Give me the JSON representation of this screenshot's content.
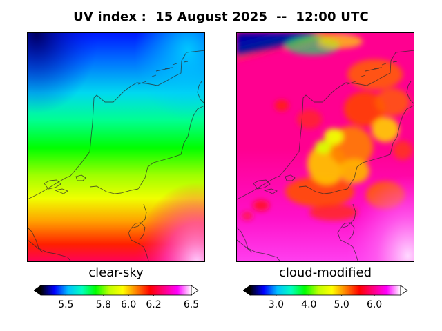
{
  "title": "UV index :  15 August 2025  --  12:00 UTC",
  "panels": [
    {
      "name": "clear-sky",
      "caption": "clear-sky",
      "colorbar": {
        "min": 5.3,
        "max": 6.5,
        "ticks": [
          "5.5",
          "5.8",
          "6.0",
          "6.2",
          "6.5"
        ],
        "tick_values": [
          5.5,
          5.8,
          6.0,
          6.2,
          6.5
        ]
      }
    },
    {
      "name": "cloud-modified",
      "caption": "cloud-modified",
      "colorbar": {
        "min": 2.2,
        "max": 6.8,
        "ticks": [
          "3.0",
          "4.0",
          "5.0",
          "6.0"
        ],
        "tick_values": [
          3.0,
          4.0,
          5.0,
          6.0
        ]
      }
    }
  ],
  "colormap": [
    "#000000",
    "#0000ff",
    "#00bfff",
    "#00ffc0",
    "#00ff00",
    "#bfff00",
    "#ffff00",
    "#ff8000",
    "#ff0000",
    "#ff0080",
    "#ff00ff",
    "#ffffff"
  ]
}
